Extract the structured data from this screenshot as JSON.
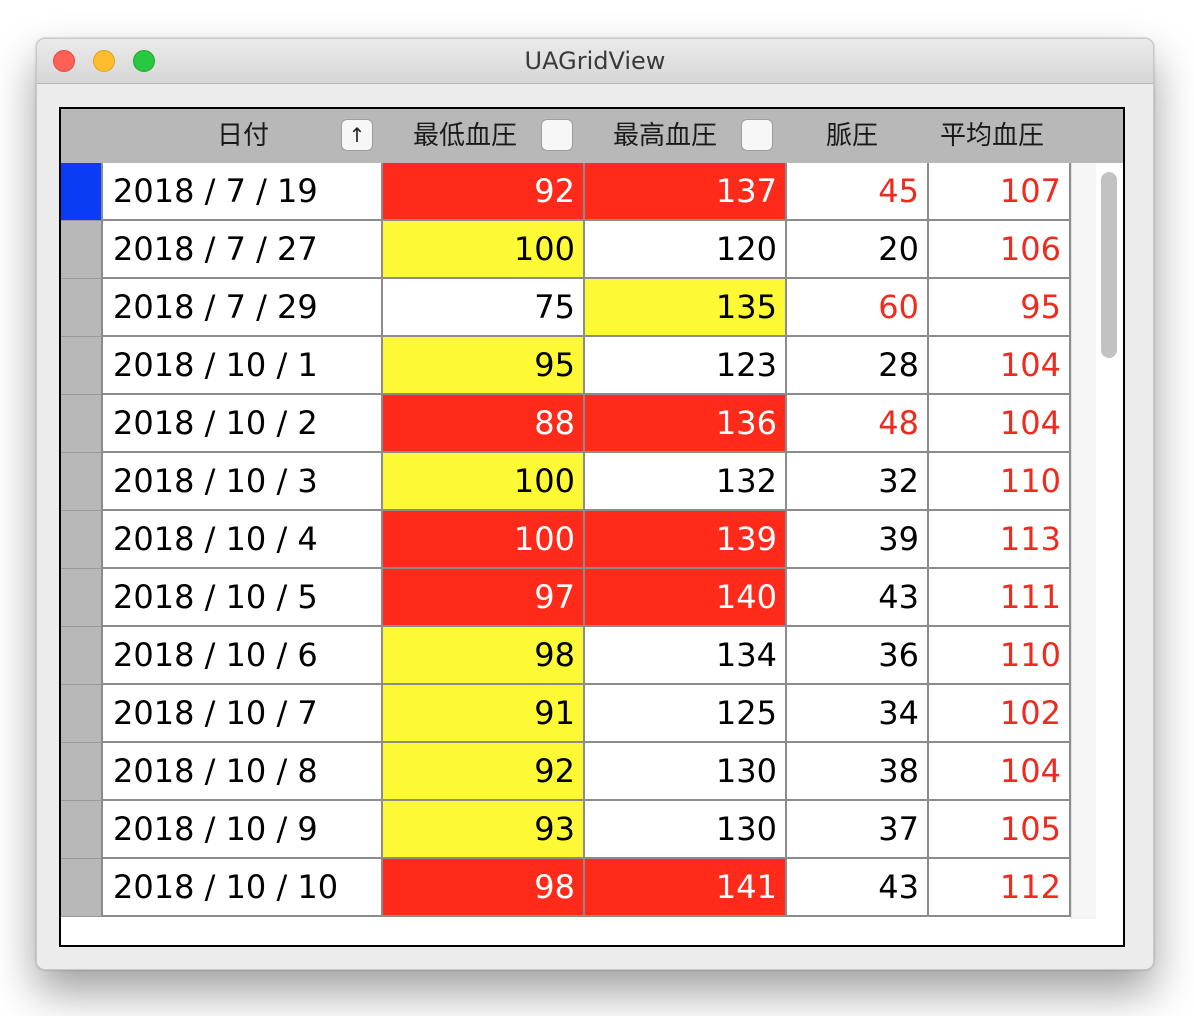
{
  "window": {
    "title": "UAGridView"
  },
  "header": {
    "columns": [
      {
        "label": "日付",
        "button": "↑"
      },
      {
        "label": "最低血圧",
        "button": ""
      },
      {
        "label": "最高血圧",
        "button": ""
      },
      {
        "label": "脈圧"
      },
      {
        "label": "平均血圧"
      }
    ]
  },
  "colors": {
    "red_fill": "#ff2a1a",
    "yellow_fill": "#fdf935",
    "red_text": "#ee2b1e",
    "white_text": "#ffffff",
    "black_text": "#000000",
    "selected_row_header": "#0a3cf5"
  },
  "rows": [
    {
      "date": "2018 / 7 / 19",
      "low": "92",
      "high": "137",
      "pulse": "45",
      "mean": "107",
      "low_state": "red",
      "high_state": "red",
      "pulse_state": "red",
      "mean_state": "red",
      "selected": true
    },
    {
      "date": "2018 / 7 / 27",
      "low": "100",
      "high": "120",
      "pulse": "20",
      "mean": "106",
      "low_state": "yellow",
      "high_state": "normal",
      "pulse_state": "normal",
      "mean_state": "red",
      "selected": false
    },
    {
      "date": "2018 / 7 / 29",
      "low": "75",
      "high": "135",
      "pulse": "60",
      "mean": "95",
      "low_state": "normal",
      "high_state": "yellow",
      "pulse_state": "red",
      "mean_state": "red",
      "selected": false
    },
    {
      "date": "2018 / 10 / 1",
      "low": "95",
      "high": "123",
      "pulse": "28",
      "mean": "104",
      "low_state": "yellow",
      "high_state": "normal",
      "pulse_state": "normal",
      "mean_state": "red",
      "selected": false
    },
    {
      "date": "2018 / 10 / 2",
      "low": "88",
      "high": "136",
      "pulse": "48",
      "mean": "104",
      "low_state": "red",
      "high_state": "red",
      "pulse_state": "red",
      "mean_state": "red",
      "selected": false
    },
    {
      "date": "2018 / 10 / 3",
      "low": "100",
      "high": "132",
      "pulse": "32",
      "mean": "110",
      "low_state": "yellow",
      "high_state": "normal",
      "pulse_state": "normal",
      "mean_state": "red",
      "selected": false
    },
    {
      "date": "2018 / 10 / 4",
      "low": "100",
      "high": "139",
      "pulse": "39",
      "mean": "113",
      "low_state": "red",
      "high_state": "red",
      "pulse_state": "normal",
      "mean_state": "red",
      "selected": false
    },
    {
      "date": "2018 / 10 / 5",
      "low": "97",
      "high": "140",
      "pulse": "43",
      "mean": "111",
      "low_state": "red",
      "high_state": "red",
      "pulse_state": "normal",
      "mean_state": "red",
      "selected": false
    },
    {
      "date": "2018 / 10 / 6",
      "low": "98",
      "high": "134",
      "pulse": "36",
      "mean": "110",
      "low_state": "yellow",
      "high_state": "normal",
      "pulse_state": "normal",
      "mean_state": "red",
      "selected": false
    },
    {
      "date": "2018 / 10 / 7",
      "low": "91",
      "high": "125",
      "pulse": "34",
      "mean": "102",
      "low_state": "yellow",
      "high_state": "normal",
      "pulse_state": "normal",
      "mean_state": "red",
      "selected": false
    },
    {
      "date": "2018 / 10 / 8",
      "low": "92",
      "high": "130",
      "pulse": "38",
      "mean": "104",
      "low_state": "yellow",
      "high_state": "normal",
      "pulse_state": "normal",
      "mean_state": "red",
      "selected": false
    },
    {
      "date": "2018 / 10 / 9",
      "low": "93",
      "high": "130",
      "pulse": "37",
      "mean": "105",
      "low_state": "yellow",
      "high_state": "normal",
      "pulse_state": "normal",
      "mean_state": "red",
      "selected": false
    },
    {
      "date": "2018 / 10 / 10",
      "low": "98",
      "high": "141",
      "pulse": "43",
      "mean": "112",
      "low_state": "red",
      "high_state": "red",
      "pulse_state": "normal",
      "mean_state": "red",
      "selected": false
    }
  ]
}
